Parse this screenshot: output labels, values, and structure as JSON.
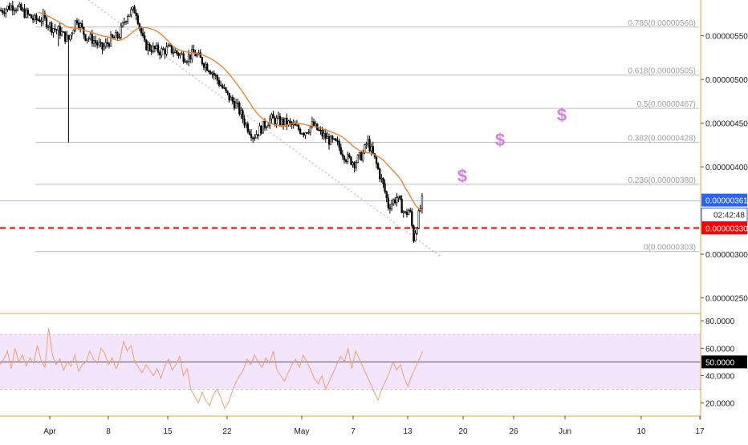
{
  "chart_data": [
    {
      "type": "candlestick",
      "title": "",
      "x_ticks": [
        "Apr",
        "8",
        "15",
        "22",
        "May",
        "7",
        "13",
        "20",
        "26",
        "Jun",
        "10",
        "17"
      ],
      "y_ticks": [
        "0.00000550",
        "0.00000500",
        "0.00000450",
        "0.00000400",
        "0.00000350",
        "0.00000300",
        "0.00000250"
      ],
      "ylim": [
        2.33e-06,
        5.91e-06
      ],
      "grid": false,
      "fib_levels": [
        {
          "ratio": "0.786",
          "price": 5.6e-06,
          "label": "0.786(0.00000560)"
        },
        {
          "ratio": "0.618",
          "price": 5.05e-06,
          "label": "0.618(0.00000505)"
        },
        {
          "ratio": "0.5",
          "price": 4.67e-06,
          "label": "0.5(0.00000467)"
        },
        {
          "ratio": "0.382",
          "price": 4.28e-06,
          "label": "0.382(0.00000428)"
        },
        {
          "ratio": "0.236",
          "price": 3.8e-06,
          "label": "0.236(0.00000380)"
        },
        {
          "ratio": "0",
          "price": 3.03e-06,
          "label": "0(0.00000303)"
        }
      ],
      "current_price": {
        "value": 3.61e-06,
        "label": "0.00000361",
        "countdown": "02:42:48",
        "color": "#2962ff"
      },
      "support_line": {
        "value": 3.3e-06,
        "label": "0.00000330",
        "color": "#ff0000"
      },
      "moving_average_color": "#f57c1f",
      "candle_color": "#000000",
      "annotation_icons": [
        "dollar-icon",
        "dollar-icon",
        "dollar-icon"
      ],
      "annotation_color": "#d77ee0",
      "close_path": [
        {
          "x": 0.0,
          "y": 5.79e-06
        },
        {
          "x": 0.03,
          "y": 5.85e-06
        },
        {
          "x": 0.06,
          "y": 5.75e-06
        },
        {
          "x": 0.08,
          "y": 5.68e-06
        },
        {
          "x": 0.1,
          "y": 5.7e-06
        },
        {
          "x": 0.12,
          "y": 5.6e-06
        },
        {
          "x": 0.14,
          "y": 5.55e-06
        },
        {
          "x": 0.16,
          "y": 5.45e-06
        },
        {
          "x": 0.18,
          "y": 5.7e-06
        },
        {
          "x": 0.2,
          "y": 5.5e-06
        },
        {
          "x": 0.22,
          "y": 5.45e-06
        },
        {
          "x": 0.24,
          "y": 5.35e-06
        },
        {
          "x": 0.26,
          "y": 5.45e-06
        },
        {
          "x": 0.28,
          "y": 5.5e-06
        },
        {
          "x": 0.3,
          "y": 5.75e-06
        },
        {
          "x": 0.32,
          "y": 5.8e-06
        },
        {
          "x": 0.34,
          "y": 5.4e-06
        },
        {
          "x": 0.36,
          "y": 5.35e-06
        },
        {
          "x": 0.38,
          "y": 5.32e-06
        },
        {
          "x": 0.4,
          "y": 5.35e-06
        },
        {
          "x": 0.42,
          "y": 5.3e-06
        },
        {
          "x": 0.44,
          "y": 5.25e-06
        },
        {
          "x": 0.46,
          "y": 5.3e-06
        },
        {
          "x": 0.48,
          "y": 5.2e-06
        },
        {
          "x": 0.5,
          "y": 5.1e-06
        },
        {
          "x": 0.52,
          "y": 4.95e-06
        },
        {
          "x": 0.54,
          "y": 4.8e-06
        },
        {
          "x": 0.56,
          "y": 4.7e-06
        },
        {
          "x": 0.58,
          "y": 4.5e-06
        },
        {
          "x": 0.6,
          "y": 4.35e-06
        },
        {
          "x": 0.62,
          "y": 4.45e-06
        },
        {
          "x": 0.64,
          "y": 4.55e-06
        },
        {
          "x": 0.66,
          "y": 4.52e-06
        },
        {
          "x": 0.68,
          "y": 4.5e-06
        },
        {
          "x": 0.7,
          "y": 4.45e-06
        },
        {
          "x": 0.72,
          "y": 4.4e-06
        },
        {
          "x": 0.74,
          "y": 4.48e-06
        },
        {
          "x": 0.76,
          "y": 4.38e-06
        },
        {
          "x": 0.78,
          "y": 4.3e-06
        },
        {
          "x": 0.8,
          "y": 4.25e-06
        },
        {
          "x": 0.82,
          "y": 4.1e-06
        },
        {
          "x": 0.84,
          "y": 4.05e-06
        },
        {
          "x": 0.86,
          "y": 4.15e-06
        },
        {
          "x": 0.87,
          "y": 4.3e-06
        },
        {
          "x": 0.89,
          "y": 4.05e-06
        },
        {
          "x": 0.91,
          "y": 3.75e-06
        },
        {
          "x": 0.92,
          "y": 3.55e-06
        },
        {
          "x": 0.94,
          "y": 3.65e-06
        },
        {
          "x": 0.96,
          "y": 3.45e-06
        },
        {
          "x": 0.97,
          "y": 3.52e-06
        },
        {
          "x": 0.98,
          "y": 3.18e-06
        },
        {
          "x": 0.99,
          "y": 3.4e-06
        },
        {
          "x": 1.0,
          "y": 3.61e-06
        }
      ]
    },
    {
      "type": "line",
      "title": "",
      "y_ticks": [
        "80.0000",
        "60.0000",
        "40.0000",
        "20.0000"
      ],
      "ylim": [
        11,
        83
      ],
      "band": [
        30,
        70
      ],
      "band_color": "#f3e5fb",
      "midline": {
        "value": 50,
        "label": "50.0000"
      },
      "series_color": "#f0a070",
      "values": [
        48,
        52,
        58,
        45,
        60,
        50,
        55,
        47,
        53,
        49,
        62,
        51,
        46,
        75,
        55,
        48,
        52,
        44,
        50,
        47,
        55,
        43,
        48,
        50,
        58,
        52,
        49,
        60,
        56,
        48,
        53,
        45,
        51,
        65,
        58,
        62,
        50,
        46,
        42,
        48,
        44,
        40,
        45,
        38,
        47,
        52,
        44,
        48,
        54,
        40,
        45,
        30,
        25,
        20,
        28,
        22,
        18,
        26,
        30,
        24,
        16,
        20,
        28,
        35,
        40,
        44,
        52,
        48,
        55,
        50,
        46,
        53,
        49,
        58,
        44,
        40,
        36,
        42,
        48,
        52,
        46,
        55,
        50,
        44,
        38,
        34,
        40,
        30,
        36,
        42,
        48,
        54,
        50,
        60,
        45,
        58,
        52,
        46,
        40,
        34,
        28,
        22,
        30,
        36,
        42,
        50,
        44,
        48,
        38,
        32,
        40,
        46,
        52,
        58
      ]
    }
  ]
}
